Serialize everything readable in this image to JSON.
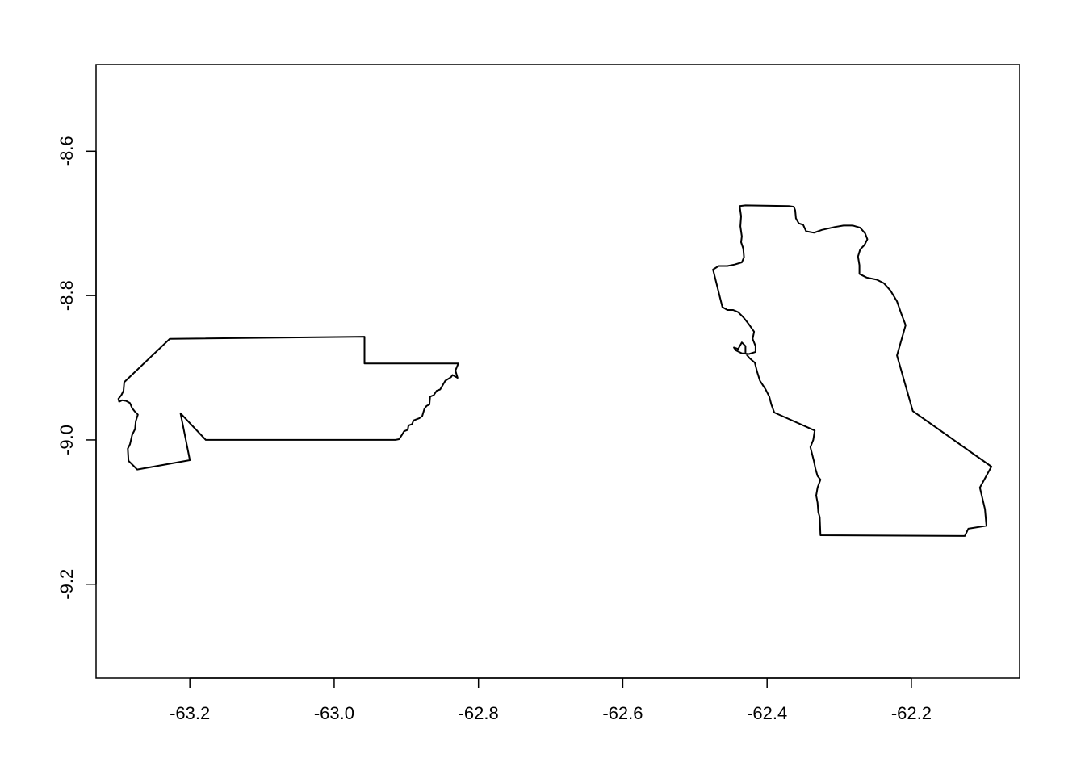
{
  "chart_data": {
    "type": "map",
    "title": "",
    "xlabel": "",
    "ylabel": "",
    "xlim": [
      -63.33,
      -62.05
    ],
    "ylim": [
      -9.33,
      -8.48
    ],
    "x_ticks": [
      -63.2,
      -63.0,
      -62.8,
      -62.6,
      -62.4,
      -62.2
    ],
    "x_tick_labels": [
      "-63.2",
      "-63.0",
      "-62.8",
      "-62.6",
      "-62.4",
      "-62.2"
    ],
    "y_ticks": [
      -8.6,
      -8.8,
      -9.0,
      -9.2
    ],
    "y_tick_labels": [
      "-8.6",
      "-8.8",
      "-9.0",
      "-9.2"
    ],
    "grid": false,
    "legend": "none",
    "colors": {
      "outline": "#000000",
      "background": "#ffffff"
    },
    "polygons": [
      {
        "coords": [
          [
            -63.228,
            -8.86
          ],
          [
            -62.958,
            -8.857
          ],
          [
            -62.958,
            -8.894
          ],
          [
            -62.828,
            -8.894
          ],
          [
            -62.832,
            -8.904
          ],
          [
            -62.829,
            -8.914
          ],
          [
            -62.836,
            -8.91
          ],
          [
            -62.838,
            -8.913
          ],
          [
            -62.846,
            -8.918
          ],
          [
            -62.853,
            -8.93
          ],
          [
            -62.858,
            -8.932
          ],
          [
            -62.862,
            -8.938
          ],
          [
            -62.867,
            -8.94
          ],
          [
            -62.868,
            -8.951
          ],
          [
            -62.872,
            -8.953
          ],
          [
            -62.875,
            -8.957
          ],
          [
            -62.878,
            -8.967
          ],
          [
            -62.882,
            -8.97
          ],
          [
            -62.89,
            -8.973
          ],
          [
            -62.892,
            -8.978
          ],
          [
            -62.897,
            -8.98
          ],
          [
            -62.898,
            -8.986
          ],
          [
            -62.903,
            -8.988
          ],
          [
            -62.906,
            -8.993
          ],
          [
            -62.91,
            -8.999
          ],
          [
            -62.915,
            -9.0
          ],
          [
            -63.15,
            -9.0
          ],
          [
            -63.178,
            -9.0
          ],
          [
            -63.213,
            -8.963
          ],
          [
            -63.2,
            -9.028
          ],
          [
            -63.273,
            -9.041
          ],
          [
            -63.278,
            -9.036
          ],
          [
            -63.285,
            -9.029
          ],
          [
            -63.286,
            -9.012
          ],
          [
            -63.283,
            -9.006
          ],
          [
            -63.28,
            -8.993
          ],
          [
            -63.276,
            -8.985
          ],
          [
            -63.275,
            -8.974
          ],
          [
            -63.272,
            -8.965
          ],
          [
            -63.276,
            -8.961
          ],
          [
            -63.28,
            -8.956
          ],
          [
            -63.283,
            -8.949
          ],
          [
            -63.288,
            -8.946
          ],
          [
            -63.294,
            -8.945
          ],
          [
            -63.298,
            -8.947
          ],
          [
            -63.299,
            -8.943
          ],
          [
            -63.295,
            -8.938
          ],
          [
            -63.292,
            -8.932
          ],
          [
            -63.291,
            -8.92
          ],
          [
            -63.228,
            -8.86
          ]
        ]
      },
      {
        "coords": [
          [
            -62.37,
            -8.676
          ],
          [
            -62.363,
            -8.677
          ],
          [
            -62.361,
            -8.682
          ],
          [
            -62.36,
            -8.693
          ],
          [
            -62.356,
            -8.7
          ],
          [
            -62.35,
            -8.702
          ],
          [
            -62.346,
            -8.711
          ],
          [
            -62.335,
            -8.713
          ],
          [
            -62.324,
            -8.709
          ],
          [
            -62.306,
            -8.705
          ],
          [
            -62.294,
            -8.703
          ],
          [
            -62.281,
            -8.703
          ],
          [
            -62.271,
            -8.706
          ],
          [
            -62.264,
            -8.714
          ],
          [
            -62.261,
            -8.722
          ],
          [
            -62.265,
            -8.73
          ],
          [
            -62.271,
            -8.736
          ],
          [
            -62.274,
            -8.746
          ],
          [
            -62.272,
            -8.758
          ],
          [
            -62.272,
            -8.77
          ],
          [
            -62.262,
            -8.775
          ],
          [
            -62.248,
            -8.778
          ],
          [
            -62.238,
            -8.783
          ],
          [
            -62.229,
            -8.793
          ],
          [
            -62.22,
            -8.808
          ],
          [
            -62.214,
            -8.825
          ],
          [
            -62.208,
            -8.841
          ],
          [
            -62.22,
            -8.883
          ],
          [
            -62.198,
            -8.96
          ],
          [
            -62.089,
            -9.037
          ],
          [
            -62.105,
            -9.066
          ],
          [
            -62.098,
            -9.096
          ],
          [
            -62.096,
            -9.119
          ],
          [
            -62.121,
            -9.123
          ],
          [
            -62.126,
            -9.133
          ],
          [
            -62.326,
            -9.132
          ],
          [
            -62.327,
            -9.107
          ],
          [
            -62.329,
            -9.1
          ],
          [
            -62.33,
            -9.087
          ],
          [
            -62.332,
            -9.077
          ],
          [
            -62.33,
            -9.066
          ],
          [
            -62.326,
            -9.055
          ],
          [
            -62.33,
            -9.05
          ],
          [
            -62.333,
            -9.04
          ],
          [
            -62.335,
            -9.03
          ],
          [
            -62.34,
            -9.01
          ],
          [
            -62.336,
            -9.0
          ],
          [
            -62.334,
            -8.987
          ],
          [
            -62.39,
            -8.962
          ],
          [
            -62.394,
            -8.951
          ],
          [
            -62.397,
            -8.94
          ],
          [
            -62.402,
            -8.93
          ],
          [
            -62.41,
            -8.918
          ],
          [
            -62.414,
            -8.905
          ],
          [
            -62.417,
            -8.893
          ],
          [
            -62.424,
            -8.887
          ],
          [
            -62.43,
            -8.88
          ],
          [
            -62.43,
            -8.87
          ],
          [
            -62.435,
            -8.865
          ],
          [
            -62.44,
            -8.874
          ],
          [
            -62.446,
            -8.872
          ],
          [
            -62.443,
            -8.876
          ],
          [
            -62.435,
            -8.88
          ],
          [
            -62.425,
            -8.881
          ],
          [
            -62.416,
            -8.878
          ],
          [
            -62.416,
            -8.87
          ],
          [
            -62.42,
            -8.86
          ],
          [
            -62.418,
            -8.85
          ],
          [
            -62.425,
            -8.84
          ],
          [
            -62.433,
            -8.83
          ],
          [
            -62.44,
            -8.823
          ],
          [
            -62.447,
            -8.82
          ],
          [
            -62.455,
            -8.82
          ],
          [
            -62.462,
            -8.816
          ],
          [
            -62.475,
            -8.764
          ],
          [
            -62.467,
            -8.759
          ],
          [
            -62.455,
            -8.759
          ],
          [
            -62.445,
            -8.757
          ],
          [
            -62.435,
            -8.754
          ],
          [
            -62.432,
            -8.747
          ],
          [
            -62.433,
            -8.735
          ],
          [
            -62.436,
            -8.726
          ],
          [
            -62.435,
            -8.718
          ],
          [
            -62.437,
            -8.704
          ],
          [
            -62.436,
            -8.69
          ],
          [
            -62.438,
            -8.676
          ],
          [
            -62.43,
            -8.675
          ],
          [
            -62.37,
            -8.676
          ]
        ]
      }
    ]
  }
}
